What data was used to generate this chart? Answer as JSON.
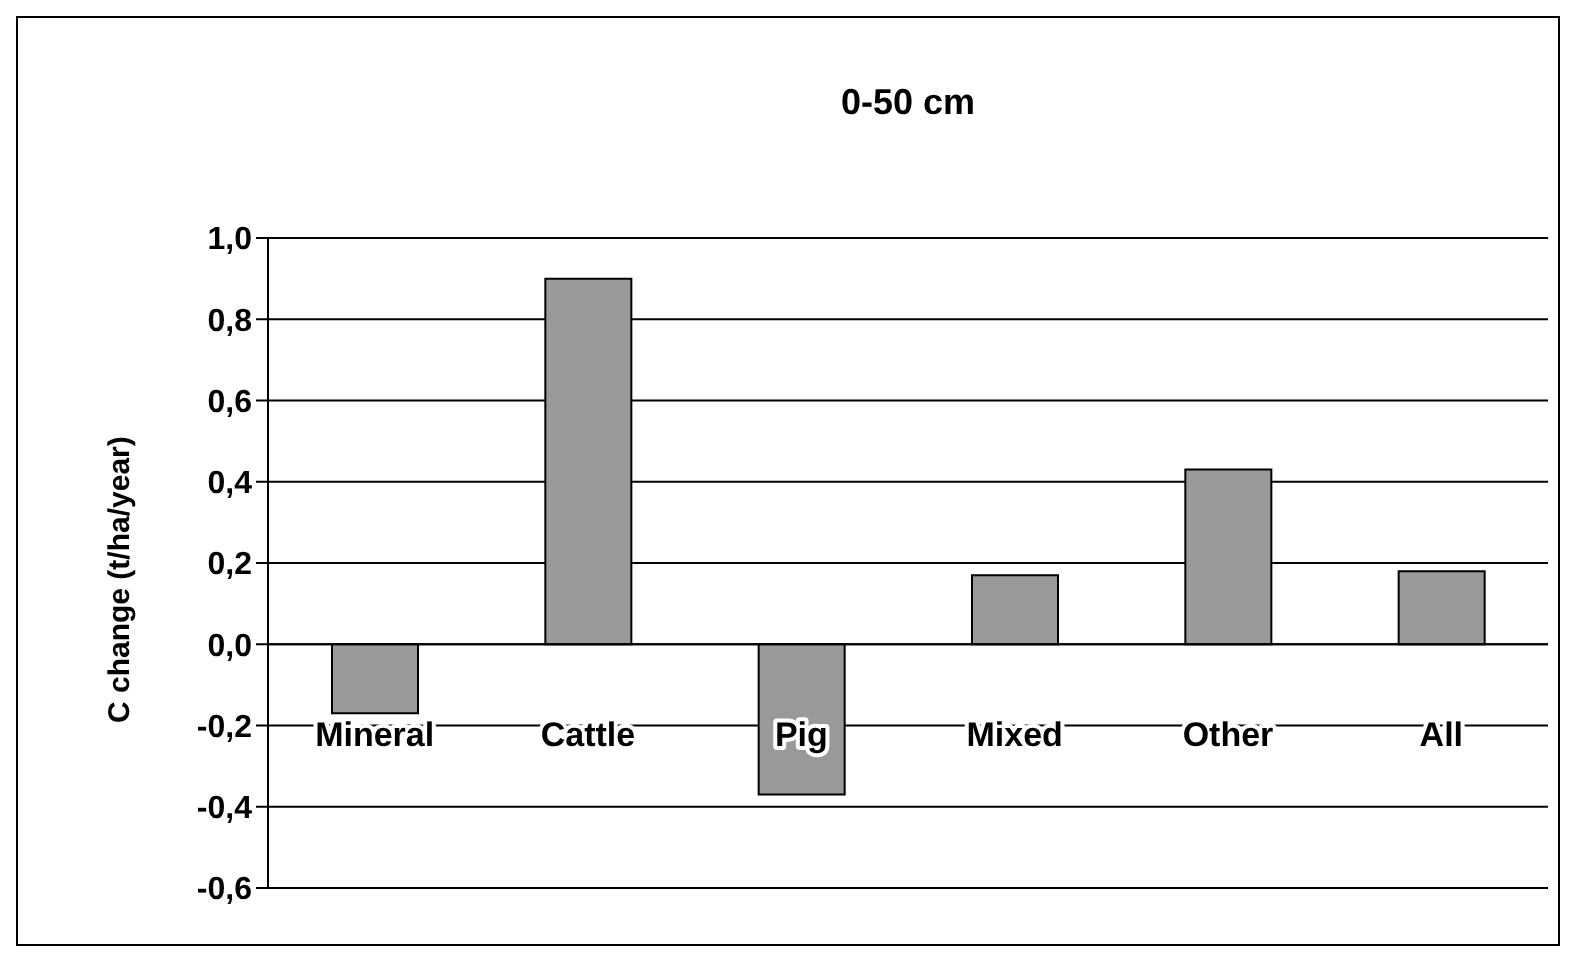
{
  "chart_data": {
    "type": "bar",
    "title": "0-50 cm",
    "ylabel": "C change (t/ha/year)",
    "categories": [
      "Mineral",
      "Cattle",
      "Pig",
      "Mixed",
      "Other",
      "All"
    ],
    "values": [
      -0.17,
      0.9,
      -0.37,
      0.17,
      0.43,
      0.18
    ],
    "color": "#999999",
    "ylim": [
      -0.6,
      1.0
    ],
    "yticks": [
      {
        "value": -0.6,
        "label": "-0,6"
      },
      {
        "value": -0.4,
        "label": "-0,4"
      },
      {
        "value": -0.2,
        "label": "-0,2"
      },
      {
        "value": 0,
        "label": "0,0"
      },
      {
        "value": 0.2,
        "label": "0,2"
      },
      {
        "value": 0.4,
        "label": "0,4"
      },
      {
        "value": 0.6,
        "label": "0,6"
      },
      {
        "value": 0.8,
        "label": "0,8"
      },
      {
        "value": 1.0,
        "label": "1,0"
      }
    ],
    "grid": "y"
  }
}
